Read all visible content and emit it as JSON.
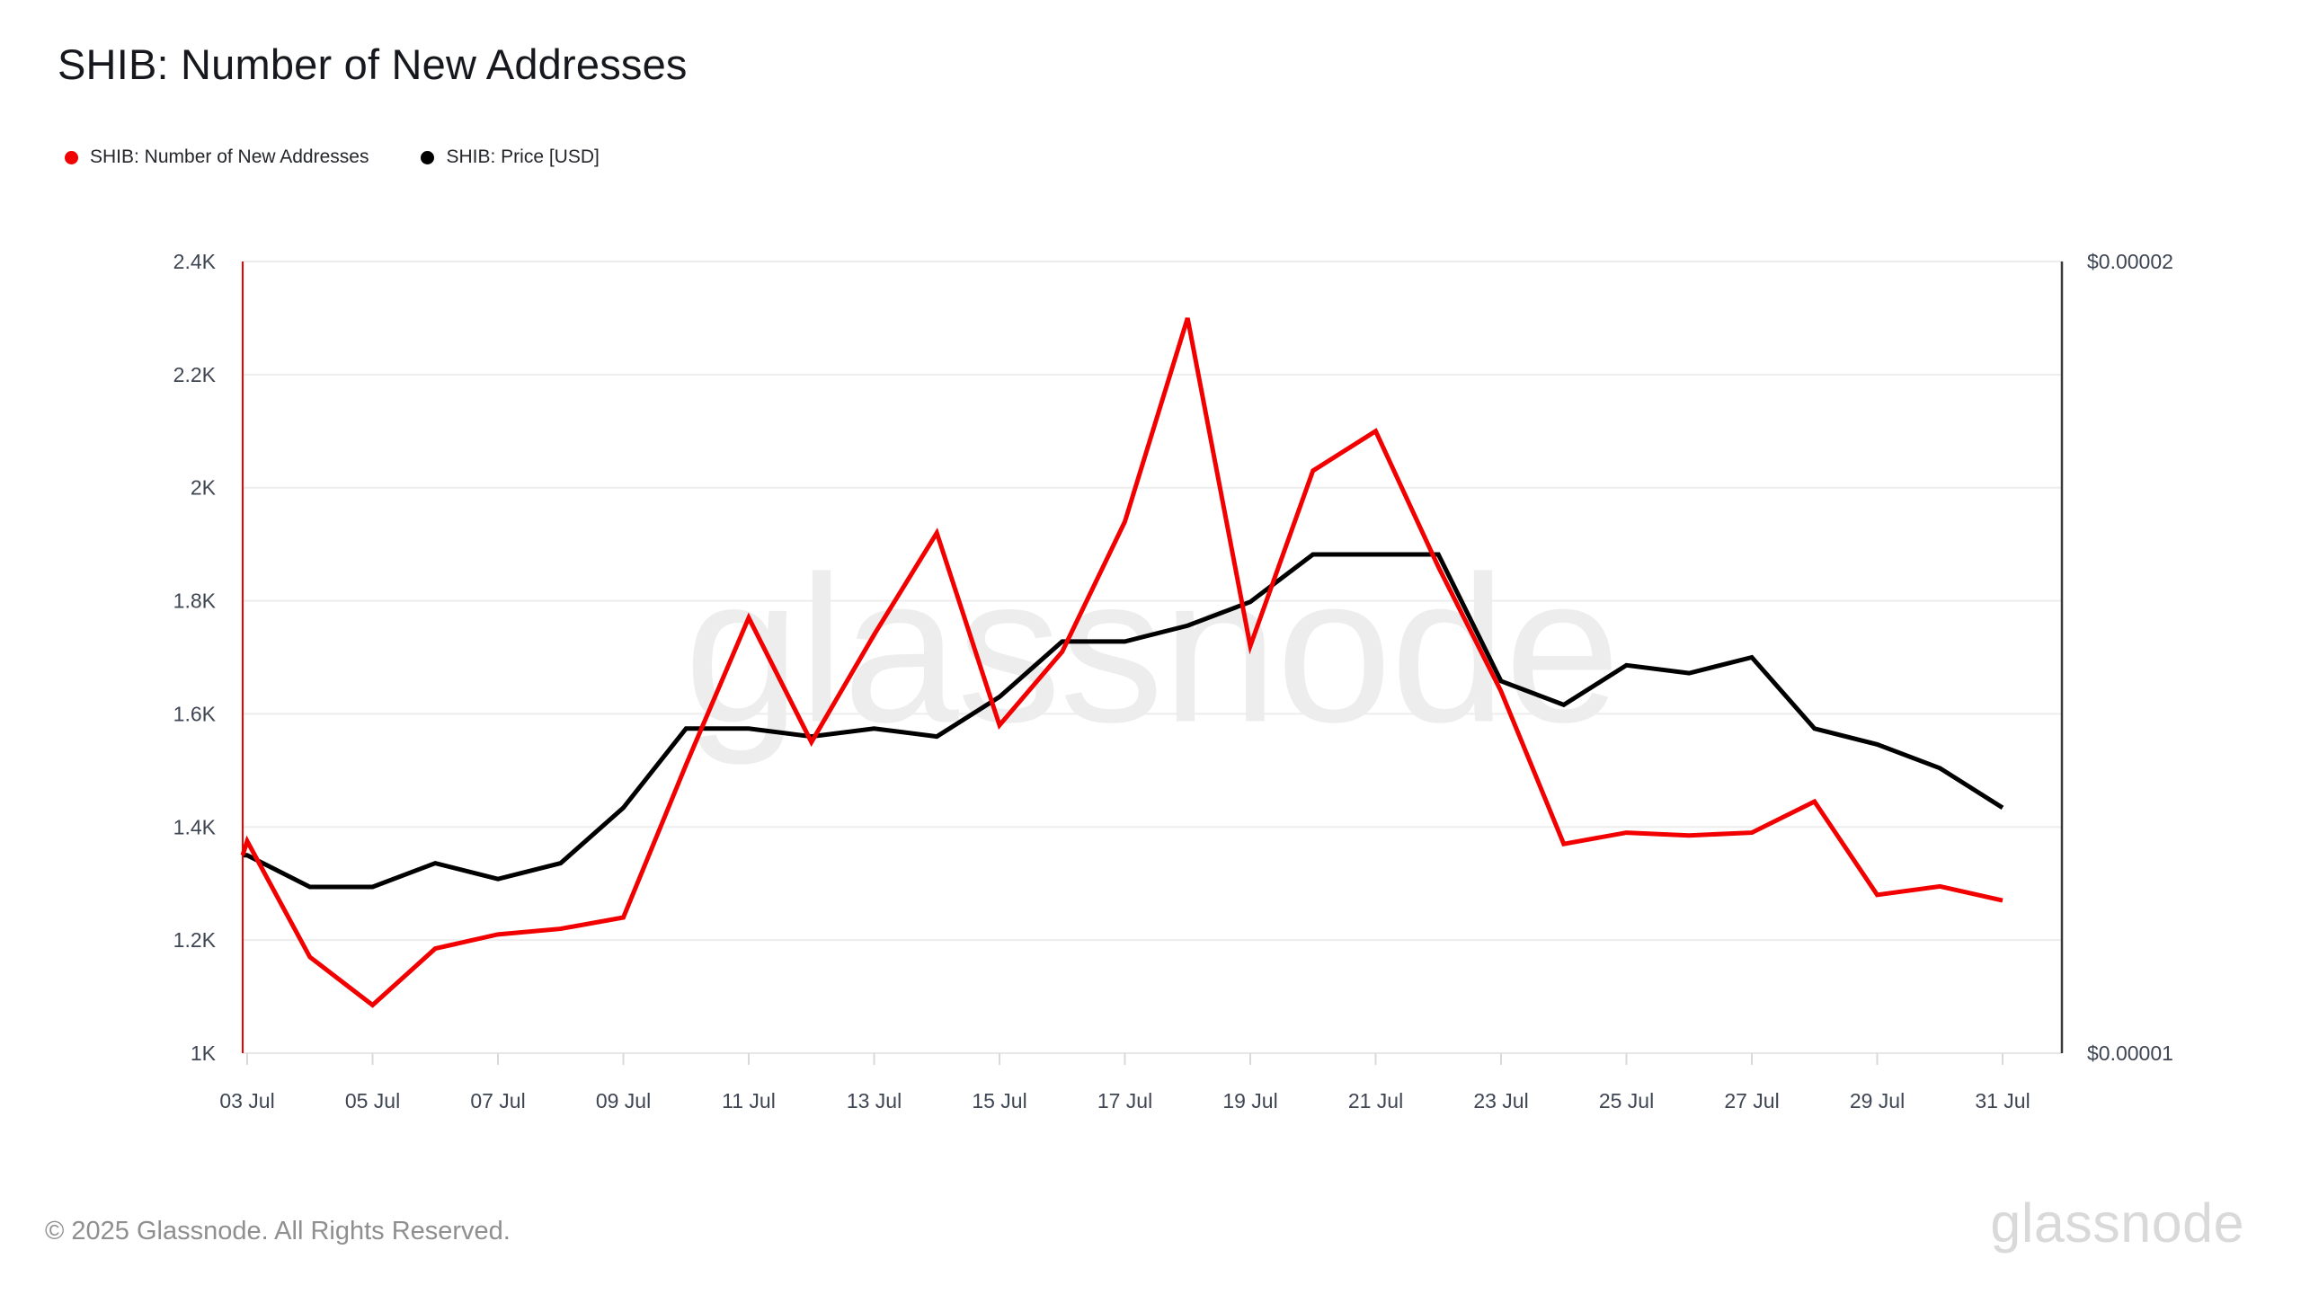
{
  "header": {
    "title": "SHIB: Number of New Addresses"
  },
  "legend": {
    "items": [
      {
        "label": "SHIB: Number of New Addresses",
        "color": "#f20000"
      },
      {
        "label": "SHIB: Price [USD]",
        "color": "#000000"
      }
    ]
  },
  "watermark": {
    "text": "glassnode"
  },
  "footer": {
    "copyright": "© 2025 Glassnode. All Rights Reserved.",
    "logo": "glassnode"
  },
  "chart_data": {
    "type": "line",
    "title": "SHIB: Number of New Addresses",
    "x": [
      "03 Jul",
      "04 Jul",
      "05 Jul",
      "06 Jul",
      "07 Jul",
      "08 Jul",
      "09 Jul",
      "10 Jul",
      "11 Jul",
      "12 Jul",
      "13 Jul",
      "14 Jul",
      "15 Jul",
      "16 Jul",
      "17 Jul",
      "18 Jul",
      "19 Jul",
      "20 Jul",
      "21 Jul",
      "22 Jul",
      "23 Jul",
      "24 Jul",
      "25 Jul",
      "26 Jul",
      "27 Jul",
      "28 Jul",
      "29 Jul",
      "30 Jul",
      "31 Jul"
    ],
    "x_tick_labels": [
      "03 Jul",
      "05 Jul",
      "07 Jul",
      "09 Jul",
      "11 Jul",
      "13 Jul",
      "15 Jul",
      "17 Jul",
      "19 Jul",
      "21 Jul",
      "23 Jul",
      "25 Jul",
      "27 Jul",
      "29 Jul",
      "31 Jul"
    ],
    "series": [
      {
        "name": "SHIB: Price [USD]",
        "axis": "right",
        "color": "#000000",
        "unit": "USD",
        "edge_value": 1.25e-05,
        "values": [
          1.25e-05,
          1.21e-05,
          1.21e-05,
          1.24e-05,
          1.22e-05,
          1.24e-05,
          1.31e-05,
          1.41e-05,
          1.41e-05,
          1.4e-05,
          1.41e-05,
          1.4e-05,
          1.45e-05,
          1.52e-05,
          1.52e-05,
          1.54e-05,
          1.57e-05,
          1.63e-05,
          1.63e-05,
          1.63e-05,
          1.47e-05,
          1.44e-05,
          1.49e-05,
          1.48e-05,
          1.5e-05,
          1.41e-05,
          1.39e-05,
          1.36e-05,
          1.31e-05
        ]
      },
      {
        "name": "SHIB: Number of New Addresses",
        "axis": "left",
        "color": "#f20000",
        "unit": "addresses",
        "edge_value": 1350,
        "values": [
          1375,
          1170,
          1085,
          1185,
          1210,
          1220,
          1240,
          1510,
          1770,
          1550,
          1740,
          1920,
          1580,
          1710,
          1940,
          2300,
          1720,
          2030,
          2100,
          1860,
          1640,
          1370,
          1390,
          1385,
          1390,
          1445,
          1280,
          1295,
          1270
        ]
      }
    ],
    "left_axis": {
      "range": [
        1000,
        2400
      ],
      "ticks": [
        {
          "label": "1K",
          "value": 1000
        },
        {
          "label": "1.2K",
          "value": 1200
        },
        {
          "label": "1.4K",
          "value": 1400
        },
        {
          "label": "1.6K",
          "value": 1600
        },
        {
          "label": "1.8K",
          "value": 1800
        },
        {
          "label": "2K",
          "value": 2000
        },
        {
          "label": "2.2K",
          "value": 2200
        },
        {
          "label": "2.4K",
          "value": 2400
        }
      ]
    },
    "right_axis": {
      "range": [
        1e-05,
        2e-05
      ],
      "ticks": [
        {
          "label": "$0.00001",
          "value": 1e-05
        },
        {
          "label": "$0.00002",
          "value": 2e-05
        }
      ]
    },
    "grid": "horizontal",
    "legend_position": "top-left"
  },
  "style": {
    "grid_color": "#ededed",
    "x_axis_color": "#e7e7e7",
    "tick_mark_color": "#d9d9d9",
    "axis_label_color": "#3e4553",
    "right_spine_color": "#3a3a3a",
    "left_cursor_color": "#f20000"
  }
}
